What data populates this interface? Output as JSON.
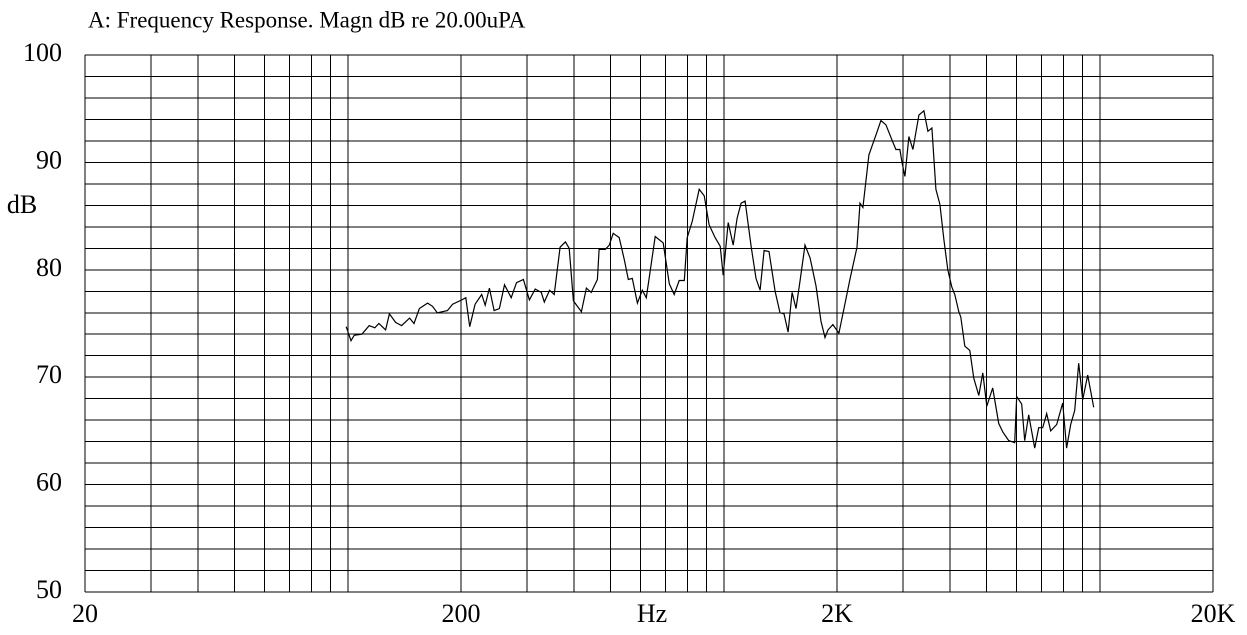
{
  "chart_data": {
    "type": "line",
    "title": "A: Frequency Response. Magn dB re 20.00uPA",
    "x_label": "Hz",
    "y_label": "dB",
    "x_scale": "log",
    "grid": true,
    "xlim": [
      20,
      20000
    ],
    "ylim": [
      50,
      100
    ],
    "xticks": [
      20,
      200,
      {
        "value": 2000,
        "label": "2K"
      },
      {
        "value": 20000,
        "label": "20K"
      }
    ],
    "yticks": [
      50,
      60,
      70,
      80,
      90,
      100
    ],
    "x_minor_ticks": [
      30,
      40,
      50,
      60,
      70,
      80,
      90,
      100,
      300,
      400,
      500,
      600,
      700,
      800,
      900,
      1000,
      3000,
      4000,
      5000,
      6000,
      7000,
      8000,
      9000,
      10000
    ],
    "y_minor_ticks": [
      52,
      54,
      56,
      58,
      62,
      64,
      66,
      68,
      72,
      74,
      76,
      78,
      82,
      84,
      86,
      88,
      92,
      94,
      96,
      98
    ],
    "series": [
      {
        "color": "#000000",
        "x": [
          99,
          102,
          104,
          109,
          114,
          118,
          121,
          126,
          129,
          134,
          139,
          146,
          150,
          155,
          163,
          168,
          173,
          184,
          190,
          201,
          206,
          211,
          218,
          227,
          232,
          238,
          245,
          253,
          261,
          272,
          281,
          293,
          304,
          315,
          327,
          333,
          344,
          354,
          367,
          379,
          388,
          398,
          418,
          431,
          444,
          461,
          466,
          484,
          496,
          508,
          527,
          544,
          557,
          571,
          589,
          607,
          622,
          637,
          657,
          690,
          716,
          738,
          761,
          785,
          799,
          824,
          860,
          887,
          914,
          948,
          978,
          996,
          1027,
          1059,
          1085,
          1112,
          1139,
          1182,
          1218,
          1249,
          1280,
          1319,
          1369,
          1411,
          1446,
          1482,
          1519,
          1556,
          1595,
          1644,
          1696,
          1759,
          1813,
          1858,
          1893,
          1951,
          2024,
          2087,
          2165,
          2260,
          2302,
          2344,
          2432,
          2554,
          2617,
          2699,
          2800,
          2869,
          2940,
          2977,
          3031,
          3106,
          3183,
          3302,
          3405,
          3489,
          3576,
          3664,
          3755,
          3848,
          3943,
          4040,
          4115,
          4216,
          4268,
          4374,
          4510,
          4622,
          4765,
          4883,
          5004,
          5191,
          5385,
          5519,
          5725,
          5939,
          6012,
          6198,
          6313,
          6469,
          6711,
          6877,
          7048,
          7222,
          7401,
          7678,
          7965,
          8162,
          8365,
          8572,
          8785,
          9003,
          9283,
          9630
        ],
        "values": [
          74.7,
          73.4,
          73.9,
          74.0,
          74.8,
          74.6,
          75.0,
          74.4,
          75.9,
          75.1,
          74.8,
          75.5,
          75.0,
          76.4,
          76.9,
          76.6,
          76.0,
          76.2,
          76.8,
          77.2,
          77.4,
          74.7,
          76.8,
          77.7,
          76.7,
          78.3,
          76.2,
          76.4,
          78.6,
          77.4,
          78.8,
          79.1,
          77.2,
          78.2,
          77.9,
          77.0,
          78.1,
          77.7,
          82.1,
          82.6,
          82.0,
          77.1,
          76.1,
          78.3,
          77.9,
          79.1,
          81.9,
          81.9,
          82.3,
          83.4,
          83.0,
          80.9,
          79.1,
          79.2,
          76.9,
          78.1,
          77.4,
          79.9,
          83.1,
          82.5,
          78.7,
          77.7,
          79.0,
          79.0,
          83.0,
          84.5,
          87.5,
          86.9,
          84.2,
          83.0,
          82.2,
          79.5,
          84.4,
          82.3,
          84.8,
          86.2,
          86.4,
          82.2,
          79.2,
          78.1,
          81.8,
          81.7,
          78.0,
          76.0,
          75.9,
          74.2,
          77.9,
          76.4,
          79.0,
          82.3,
          81.1,
          78.5,
          75.2,
          73.7,
          74.4,
          74.9,
          74.1,
          76.4,
          79.1,
          82.1,
          86.2,
          85.8,
          90.7,
          92.8,
          93.9,
          93.5,
          92.1,
          91.2,
          91.2,
          90.0,
          88.7,
          92.4,
          91.2,
          94.4,
          94.8,
          92.9,
          93.2,
          87.5,
          86.1,
          82.8,
          80.0,
          78.4,
          77.7,
          76.1,
          75.6,
          72.9,
          72.5,
          69.9,
          68.3,
          70.4,
          67.3,
          69.0,
          65.7,
          64.9,
          64.1,
          63.9,
          68.2,
          67.5,
          64.1,
          66.5,
          63.4,
          65.3,
          65.3,
          66.6,
          65.0,
          65.6,
          67.6,
          63.4,
          65.6,
          66.9,
          71.3,
          67.9,
          70.2,
          67.2
        ]
      }
    ]
  }
}
